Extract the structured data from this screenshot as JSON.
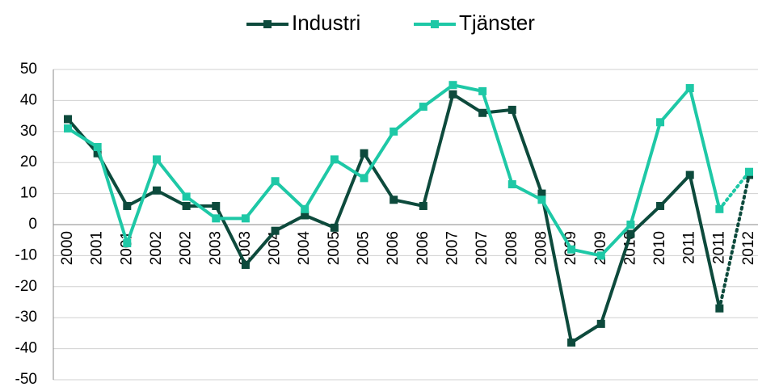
{
  "chart_data": {
    "type": "line",
    "categories": [
      "2000",
      "2001",
      "2001",
      "2002",
      "2002",
      "2003",
      "2003",
      "2004",
      "2004",
      "2005",
      "2005",
      "2006",
      "2006",
      "2007",
      "2007",
      "2008",
      "2008",
      "2009",
      "2009",
      "2010",
      "2010",
      "2011",
      "2011",
      "2012"
    ],
    "series": [
      {
        "name": "Industri",
        "color": "#0d4a3c",
        "values": [
          34,
          23,
          6,
          11,
          6,
          6,
          -13,
          -2,
          3,
          -1,
          23,
          8,
          6,
          42,
          36,
          37,
          10,
          -38,
          -32,
          -3,
          6,
          16,
          -27,
          16
        ]
      },
      {
        "name": "Tjänster",
        "color": "#1ec8a6",
        "values": [
          31,
          25,
          -6,
          21,
          9,
          2,
          2,
          14,
          5,
          21,
          15,
          30,
          38,
          45,
          43,
          13,
          8,
          -8,
          -10,
          0,
          33,
          44,
          5,
          17
        ]
      }
    ],
    "ylim": [
      -50,
      50
    ],
    "yticks": [
      -50,
      -40,
      -30,
      -20,
      -10,
      0,
      10,
      20,
      30,
      40,
      50
    ],
    "grid": true,
    "legend": "top"
  }
}
